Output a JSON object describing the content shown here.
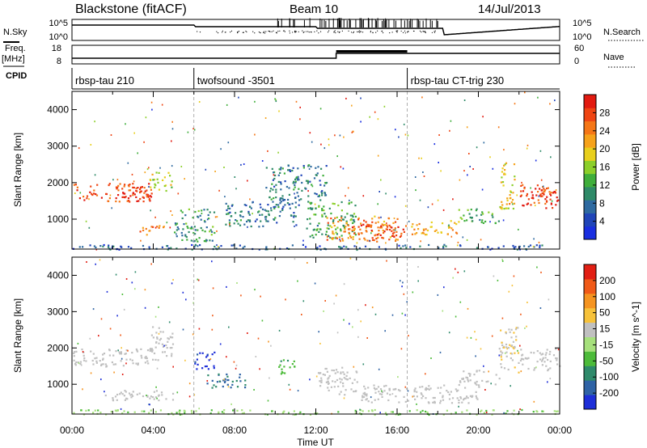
{
  "header": {
    "station": "Blackstone (fitACF)",
    "beam": "Beam 10",
    "date": "14/Jul/2013"
  },
  "left_labels": {
    "nsky": "N.Sky",
    "freq": "Freq.",
    "freq_unit": "[MHz]",
    "cpid": "CPID"
  },
  "right_labels": {
    "nsearch": "N.Search",
    "nave": "Nave"
  },
  "noise_panel": {
    "left_ticks": [
      "10^5",
      "10^0"
    ],
    "right_ticks": [
      "10^5",
      "10^0"
    ]
  },
  "freq_panel": {
    "left_ticks": [
      "18",
      "8"
    ],
    "right_ticks": [
      "60",
      "0"
    ]
  },
  "cpid_segments": [
    {
      "label": "rbsp-tau 210",
      "start_hour": 0.0
    },
    {
      "label": "twofsound -3501",
      "start_hour": 6.0
    },
    {
      "label": "rbsp-tau CT-trig 230",
      "start_hour": 16.5
    }
  ],
  "colors": {
    "gs_gray": "#c0c0c0"
  },
  "chart_data": [
    {
      "type": "heatmap",
      "title": "",
      "xlabel": "",
      "ylabel": "Slant Range [km]",
      "xlim": [
        0,
        24
      ],
      "ylim": [
        180,
        4500
      ],
      "x_ticks": [
        "00:00",
        "04:00",
        "08:00",
        "12:00",
        "16:00",
        "20:00",
        "00:00"
      ],
      "y_ticks": [
        1000,
        2000,
        3000,
        4000
      ],
      "colorbar": {
        "label": "Power [dB]",
        "ticks": [
          "4",
          "8",
          "12",
          "16",
          "20",
          "24",
          "28"
        ],
        "range": [
          0,
          30
        ],
        "colors": [
          "#1a2fe0",
          "#2045b8",
          "#2e6aa0",
          "#2f8a68",
          "#3fae3b",
          "#8ccf2a",
          "#e8cf1c",
          "#f6a21a",
          "#f57616",
          "#ef4513",
          "#e21a10"
        ]
      },
      "regions": [
        {
          "x": [
            0.0,
            3.9
          ],
          "y": [
            1500,
            2000
          ],
          "value": 26
        },
        {
          "x": [
            2.0,
            3.8
          ],
          "y": [
            1600,
            1900
          ],
          "value": 28
        },
        {
          "x": [
            3.3,
            4.6
          ],
          "y": [
            580,
            850
          ],
          "value": 22
        },
        {
          "x": [
            3.8,
            5.0
          ],
          "y": [
            1800,
            2300
          ],
          "value": 16
        },
        {
          "x": [
            5.0,
            7.0
          ],
          "y": [
            400,
            1300
          ],
          "value": 10
        },
        {
          "x": [
            7.5,
            11.0
          ],
          "y": [
            800,
            1500
          ],
          "value": 8
        },
        {
          "x": [
            9.5,
            12.5
          ],
          "y": [
            1400,
            2500
          ],
          "value": 8
        },
        {
          "x": [
            11.5,
            14.0
          ],
          "y": [
            500,
            1500
          ],
          "value": 12
        },
        {
          "x": [
            12.5,
            16.0
          ],
          "y": [
            400,
            1100
          ],
          "value": 22
        },
        {
          "x": [
            13.5,
            16.5
          ],
          "y": [
            500,
            900
          ],
          "value": 26
        },
        {
          "x": [
            16.5,
            19.0
          ],
          "y": [
            600,
            1000
          ],
          "value": 20
        },
        {
          "x": [
            19.0,
            21.0
          ],
          "y": [
            900,
            1300
          ],
          "value": 12
        },
        {
          "x": [
            21.0,
            21.8
          ],
          "y": [
            1300,
            2600
          ],
          "value": 18
        },
        {
          "x": [
            22.0,
            23.8
          ],
          "y": [
            1300,
            2000
          ],
          "value": 26
        },
        {
          "x": [
            22.5,
            24.0
          ],
          "y": [
            1500,
            1800
          ],
          "value": 28
        },
        {
          "x": [
            0.0,
            24.0
          ],
          "y": [
            180,
            320
          ],
          "value": 6
        }
      ]
    },
    {
      "type": "heatmap",
      "title": "",
      "xlabel": "Time UT",
      "ylabel": "Slant Range [km]",
      "xlim": [
        0,
        24
      ],
      "ylim": [
        180,
        4500
      ],
      "x_ticks": [
        "00:00",
        "04:00",
        "08:00",
        "12:00",
        "16:00",
        "20:00",
        "00:00"
      ],
      "y_ticks": [
        1000,
        2000,
        3000,
        4000
      ],
      "colorbar": {
        "label": "Velocity [m s^-1]",
        "ticks": [
          "200",
          "100",
          "50",
          "15",
          "-15",
          "-50",
          "-100",
          "-200"
        ],
        "range": [
          -250,
          250
        ],
        "colors": [
          "#1e2fd8",
          "#2f63a5",
          "#2f8a6b",
          "#4dbb3a",
          "#a6e07c",
          "#c0c0c0",
          "#f7c23a",
          "#f59421",
          "#f05a18",
          "#e21f14"
        ]
      },
      "regions": [
        {
          "x": [
            0.0,
            4.2
          ],
          "y": [
            1500,
            2000
          ],
          "value": 0,
          "ground_scatter": true
        },
        {
          "x": [
            3.8,
            5.0
          ],
          "y": [
            1800,
            2600
          ],
          "value": 0,
          "ground_scatter": true
        },
        {
          "x": [
            1.5,
            5.0
          ],
          "y": [
            550,
            850
          ],
          "value": 0,
          "ground_scatter": true
        },
        {
          "x": [
            6.0,
            7.0
          ],
          "y": [
            1400,
            1900
          ],
          "value": -220
        },
        {
          "x": [
            6.5,
            8.5
          ],
          "y": [
            900,
            1300
          ],
          "value": -160
        },
        {
          "x": [
            10.0,
            11.0
          ],
          "y": [
            1300,
            1700
          ],
          "value": -80
        },
        {
          "x": [
            12.0,
            14.0
          ],
          "y": [
            700,
            1500
          ],
          "value": 0,
          "ground_scatter": true
        },
        {
          "x": [
            14.0,
            20.0
          ],
          "y": [
            500,
            1000
          ],
          "value": 0,
          "ground_scatter": true
        },
        {
          "x": [
            19.0,
            21.0
          ],
          "y": [
            1000,
            1400
          ],
          "value": 0,
          "ground_scatter": true
        },
        {
          "x": [
            21.0,
            22.0
          ],
          "y": [
            1300,
            2600
          ],
          "value": 40
        },
        {
          "x": [
            22.0,
            24.0
          ],
          "y": [
            1400,
            2000
          ],
          "value": 0,
          "ground_scatter": true
        },
        {
          "x": [
            0.0,
            24.0
          ],
          "y": [
            180,
            320
          ],
          "value": -40
        }
      ]
    }
  ]
}
